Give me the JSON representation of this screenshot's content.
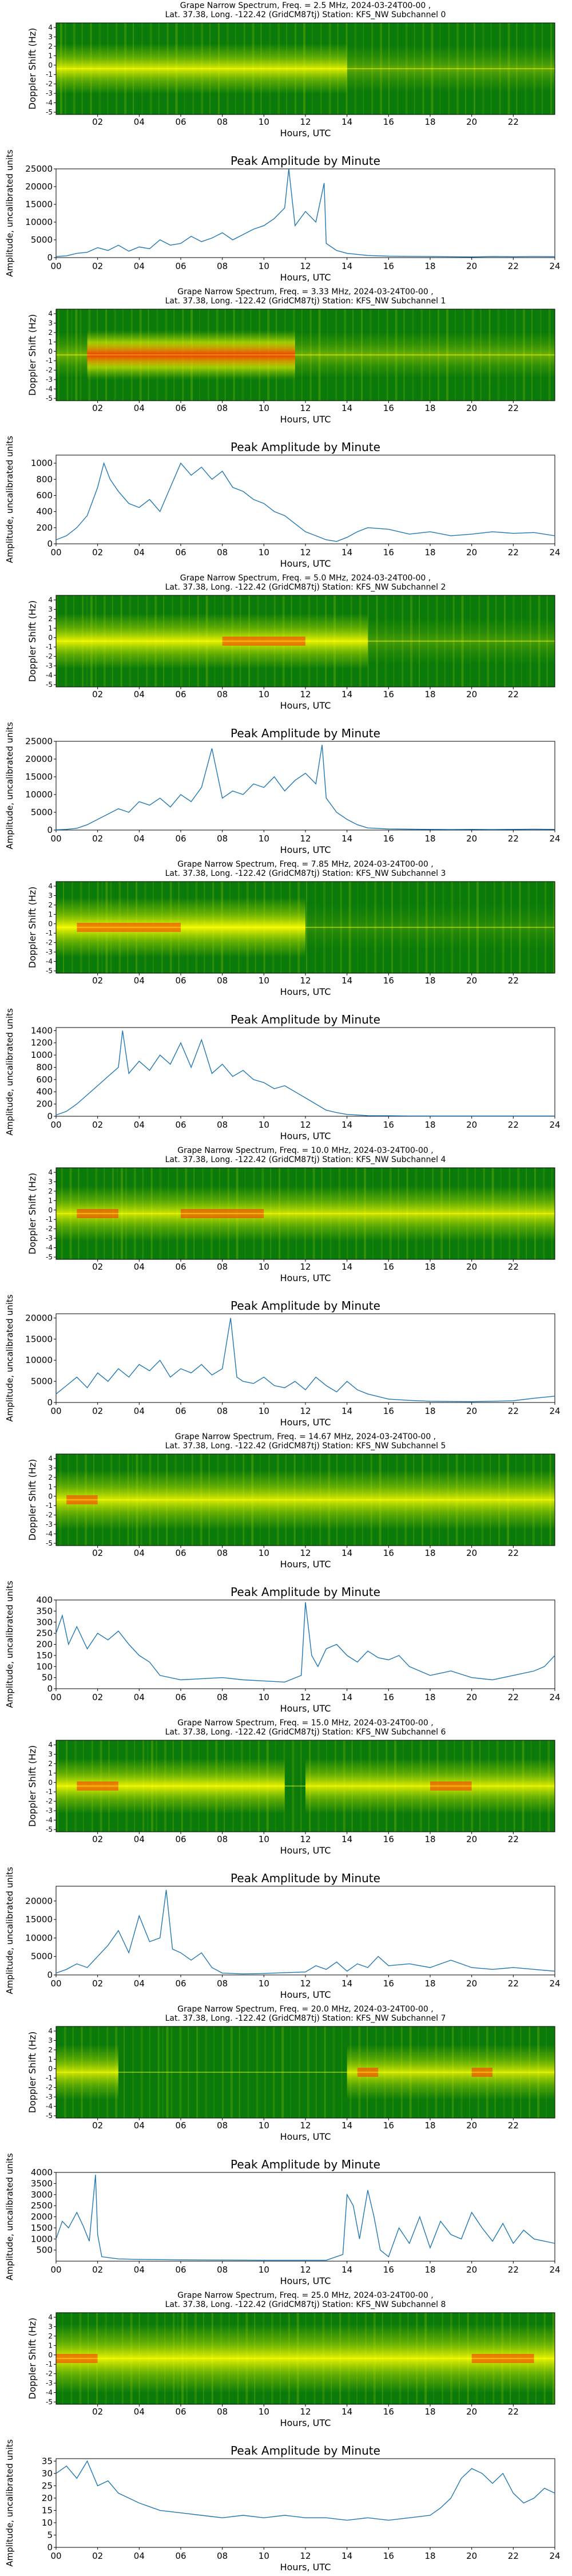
{
  "figure": {
    "type": "composite",
    "spectrogram_colors": {
      "low": "#0a7a0a",
      "mid": "#9ed200",
      "high": "#ffff00",
      "peak": "#ff2a00"
    },
    "line_color": "#1f77b4"
  },
  "chart_data": [
    {
      "type": "heatmap",
      "title": "Grape Narrow Spectrum, Freq. = 2.5 MHz, 2024-03-24T00-00 ,",
      "subtitle": "Lat.  37.38, Long. -122.42 (GridCM87tj) Station: KFS_NW Subchannel 0",
      "xlabel": "Hours, UTC",
      "ylabel": "Doppler Shift (Hz)",
      "xticks": [
        "02",
        "04",
        "06",
        "08",
        "10",
        "12",
        "14",
        "16",
        "18",
        "20",
        "22"
      ],
      "yticks": [
        "-5",
        "-4",
        "-3",
        "-2",
        "-1",
        "0",
        "1",
        "2",
        "3",
        "4"
      ]
    },
    {
      "type": "line",
      "title": "Peak Amplitude by Minute",
      "xlabel": "Hours, UTC",
      "ylabel": "Amplitude, uncalibrated units",
      "xlim": [
        0,
        24
      ],
      "ylim": [
        0,
        25000
      ],
      "yticks": [
        0,
        5000,
        10000,
        15000,
        20000,
        25000
      ],
      "x": [
        0,
        0.5,
        1,
        1.5,
        2,
        2.5,
        3,
        3.5,
        4,
        4.5,
        5,
        5.5,
        6,
        6.5,
        7,
        7.5,
        8,
        8.5,
        9,
        9.5,
        10,
        10.5,
        11,
        11.2,
        11.5,
        12,
        12.5,
        12.9,
        13,
        13.5,
        14,
        15,
        16,
        17,
        18,
        19,
        20,
        21,
        22,
        23,
        24
      ],
      "y": [
        300,
        500,
        1200,
        1500,
        2800,
        2000,
        3500,
        1800,
        3000,
        2500,
        5000,
        3500,
        4000,
        6000,
        4500,
        5500,
        7000,
        5000,
        6500,
        8000,
        9000,
        11000,
        14000,
        25000,
        9000,
        13000,
        10000,
        21000,
        4000,
        2000,
        1200,
        600,
        400,
        350,
        300,
        250,
        200,
        300,
        250,
        300,
        280
      ]
    },
    {
      "type": "heatmap",
      "title": "Grape Narrow Spectrum, Freq. = 3.33 MHz, 2024-03-24T00-00 ,",
      "subtitle": "Lat.  37.38, Long. -122.42 (GridCM87tj) Station: KFS_NW Subchannel 1",
      "xlabel": "Hours, UTC",
      "ylabel": "Doppler Shift (Hz)",
      "xticks": [
        "02",
        "04",
        "06",
        "08",
        "10",
        "12",
        "14",
        "16",
        "18",
        "20",
        "22"
      ],
      "yticks": [
        "-5",
        "-4",
        "-3",
        "-2",
        "-1",
        "0",
        "1",
        "2",
        "3",
        "4"
      ]
    },
    {
      "type": "line",
      "title": "Peak Amplitude by Minute",
      "xlabel": "Hours, UTC",
      "ylabel": "Amplitude, uncalibrated units",
      "xlim": [
        0,
        24
      ],
      "ylim": [
        0,
        1100
      ],
      "yticks": [
        0,
        200,
        400,
        600,
        800,
        1000
      ],
      "x": [
        0,
        0.5,
        1,
        1.5,
        2,
        2.3,
        2.6,
        3,
        3.5,
        4,
        4.5,
        5,
        5.5,
        6,
        6.5,
        7,
        7.5,
        8,
        8.5,
        9,
        9.5,
        10,
        10.5,
        11,
        11.5,
        12,
        12.5,
        13,
        13.5,
        14,
        14.5,
        15,
        16,
        17,
        18,
        19,
        20,
        21,
        22,
        23,
        24
      ],
      "y": [
        50,
        100,
        200,
        350,
        700,
        1000,
        800,
        650,
        500,
        450,
        550,
        400,
        700,
        1000,
        850,
        950,
        800,
        900,
        700,
        650,
        550,
        500,
        400,
        350,
        250,
        150,
        100,
        50,
        30,
        80,
        150,
        200,
        180,
        120,
        150,
        100,
        120,
        150,
        130,
        140,
        100
      ]
    },
    {
      "type": "heatmap",
      "title": "Grape Narrow Spectrum, Freq. = 5.0 MHz, 2024-03-24T00-00 ,",
      "subtitle": "Lat.  37.38, Long. -122.42 (GridCM87tj) Station: KFS_NW Subchannel 2",
      "xlabel": "Hours, UTC",
      "ylabel": "Doppler Shift (Hz)",
      "xticks": [
        "02",
        "04",
        "06",
        "08",
        "10",
        "12",
        "14",
        "16",
        "18",
        "20",
        "22"
      ],
      "yticks": [
        "-5",
        "-4",
        "-3",
        "-2",
        "-1",
        "0",
        "1",
        "2",
        "3",
        "4"
      ]
    },
    {
      "type": "line",
      "title": "Peak Amplitude by Minute",
      "xlabel": "Hours, UTC",
      "ylabel": "Amplitude, uncalibrated units",
      "xlim": [
        0,
        24
      ],
      "ylim": [
        0,
        25000
      ],
      "yticks": [
        0,
        5000,
        10000,
        15000,
        20000,
        25000
      ],
      "x": [
        0,
        0.5,
        1,
        1.5,
        2,
        2.5,
        3,
        3.5,
        4,
        4.5,
        5,
        5.5,
        6,
        6.5,
        7,
        7.5,
        8,
        8.5,
        9,
        9.5,
        10,
        10.5,
        11,
        11.5,
        12,
        12.5,
        12.8,
        13,
        13.5,
        14,
        14.5,
        15,
        16,
        17,
        18,
        19,
        20,
        21,
        22,
        23,
        24
      ],
      "y": [
        100,
        200,
        500,
        1500,
        3000,
        4500,
        6000,
        5000,
        8000,
        7000,
        9000,
        6500,
        10000,
        8000,
        12000,
        23000,
        9000,
        11000,
        10000,
        13000,
        12000,
        15000,
        11000,
        14000,
        16000,
        13000,
        24000,
        9000,
        5000,
        3000,
        1500,
        600,
        300,
        250,
        200,
        150,
        200,
        150,
        200,
        250,
        200
      ]
    },
    {
      "type": "heatmap",
      "title": "Grape Narrow Spectrum, Freq. = 7.85 MHz, 2024-03-24T00-00 ,",
      "subtitle": "Lat.  37.38, Long. -122.42 (GridCM87tj) Station: KFS_NW Subchannel 3",
      "xlabel": "Hours, UTC",
      "ylabel": "Doppler Shift (Hz)",
      "xticks": [
        "02",
        "04",
        "06",
        "08",
        "10",
        "12",
        "14",
        "16",
        "18",
        "20",
        "22"
      ],
      "yticks": [
        "-5",
        "-4",
        "-3",
        "-2",
        "-1",
        "0",
        "1",
        "2",
        "3",
        "4"
      ]
    },
    {
      "type": "line",
      "title": "Peak Amplitude by Minute",
      "xlabel": "Hours, UTC",
      "ylabel": "Amplitude, uncalibrated units",
      "xlim": [
        0,
        24
      ],
      "ylim": [
        0,
        1450
      ],
      "yticks": [
        0,
        200,
        400,
        600,
        800,
        1000,
        1200,
        1400
      ],
      "x": [
        0,
        0.5,
        1,
        1.5,
        2,
        2.5,
        3,
        3.2,
        3.5,
        4,
        4.5,
        5,
        5.5,
        6,
        6.5,
        7,
        7.5,
        8,
        8.5,
        9,
        9.5,
        10,
        10.5,
        11,
        11.5,
        12,
        12.5,
        13,
        13.5,
        14,
        15,
        16,
        17,
        18,
        19,
        20,
        21,
        22,
        23,
        24
      ],
      "y": [
        20,
        80,
        200,
        350,
        500,
        650,
        800,
        1400,
        700,
        900,
        750,
        1000,
        850,
        1200,
        800,
        1250,
        700,
        850,
        650,
        750,
        600,
        550,
        450,
        500,
        400,
        300,
        200,
        100,
        60,
        30,
        10,
        8,
        6,
        5,
        5,
        5,
        5,
        5,
        5,
        5
      ]
    },
    {
      "type": "heatmap",
      "title": "Grape Narrow Spectrum, Freq. = 10.0 MHz, 2024-03-24T00-00 ,",
      "subtitle": "Lat.  37.38, Long. -122.42 (GridCM87tj) Station: KFS_NW Subchannel 4",
      "xlabel": "Hours, UTC",
      "ylabel": "Doppler Shift (Hz)",
      "xticks": [
        "02",
        "04",
        "06",
        "08",
        "10",
        "12",
        "14",
        "16",
        "18",
        "20",
        "22"
      ],
      "yticks": [
        "-5",
        "-4",
        "-3",
        "-2",
        "-1",
        "0",
        "1",
        "2",
        "3",
        "4"
      ]
    },
    {
      "type": "line",
      "title": "Peak Amplitude by Minute",
      "xlabel": "Hours, UTC",
      "ylabel": "Amplitude, uncalibrated units",
      "xlim": [
        0,
        24
      ],
      "ylim": [
        0,
        21000
      ],
      "yticks": [
        0,
        5000,
        10000,
        15000,
        20000
      ],
      "x": [
        0,
        0.5,
        1,
        1.5,
        2,
        2.5,
        3,
        3.5,
        4,
        4.5,
        5,
        5.5,
        6,
        6.5,
        7,
        7.5,
        8,
        8.4,
        8.7,
        9,
        9.5,
        10,
        10.5,
        11,
        11.5,
        12,
        12.5,
        13,
        13.5,
        14,
        14.5,
        15,
        16,
        17,
        18,
        19,
        20,
        21,
        22,
        23,
        24
      ],
      "y": [
        2000,
        4000,
        6000,
        3500,
        7000,
        5000,
        8000,
        6000,
        9000,
        7500,
        10000,
        6000,
        8000,
        7000,
        9000,
        6500,
        8000,
        20000,
        6000,
        5000,
        4500,
        6000,
        4000,
        3500,
        5000,
        3000,
        6000,
        4000,
        2500,
        5000,
        3000,
        2000,
        800,
        500,
        300,
        250,
        200,
        300,
        400,
        1000,
        1500
      ]
    },
    {
      "type": "heatmap",
      "title": "Grape Narrow Spectrum, Freq. = 14.67 MHz, 2024-03-24T00-00 ,",
      "subtitle": "Lat.  37.38, Long. -122.42 (GridCM87tj) Station: KFS_NW Subchannel 5",
      "xlabel": "Hours, UTC",
      "ylabel": "Doppler Shift (Hz)",
      "xticks": [
        "02",
        "04",
        "06",
        "08",
        "10",
        "12",
        "14",
        "16",
        "18",
        "20",
        "22"
      ],
      "yticks": [
        "-5",
        "-4",
        "-3",
        "-2",
        "-1",
        "0",
        "1",
        "2",
        "3",
        "4"
      ]
    },
    {
      "type": "line",
      "title": "Peak Amplitude by Minute",
      "xlabel": "Hours, UTC",
      "ylabel": "Amplitude, uncalibrated units",
      "xlim": [
        0,
        24
      ],
      "ylim": [
        0,
        400
      ],
      "yticks": [
        0,
        50,
        100,
        150,
        200,
        250,
        300,
        350,
        400
      ],
      "x": [
        0,
        0.3,
        0.6,
        1,
        1.5,
        2,
        2.5,
        3,
        3.5,
        4,
        4.5,
        5,
        6,
        7,
        8,
        9,
        10,
        11,
        11.8,
        12,
        12.3,
        12.6,
        13,
        13.5,
        14,
        14.5,
        15,
        15.5,
        16,
        16.5,
        17,
        18,
        19,
        20,
        21,
        22,
        23,
        23.5,
        24
      ],
      "y": [
        250,
        330,
        200,
        280,
        180,
        250,
        220,
        260,
        200,
        150,
        120,
        60,
        40,
        45,
        50,
        40,
        35,
        30,
        60,
        390,
        150,
        100,
        180,
        200,
        150,
        120,
        170,
        140,
        130,
        150,
        100,
        60,
        80,
        50,
        40,
        60,
        80,
        100,
        150
      ]
    },
    {
      "type": "heatmap",
      "title": "Grape Narrow Spectrum, Freq. = 15.0 MHz, 2024-03-24T00-00 ,",
      "subtitle": "Lat.  37.38, Long. -122.42 (GridCM87tj) Station: KFS_NW Subchannel 6",
      "xlabel": "Hours, UTC",
      "ylabel": "Doppler Shift (Hz)",
      "xticks": [
        "02",
        "04",
        "06",
        "08",
        "10",
        "12",
        "14",
        "16",
        "18",
        "20",
        "22"
      ],
      "yticks": [
        "-5",
        "-4",
        "-3",
        "-2",
        "-1",
        "0",
        "1",
        "2",
        "3",
        "4"
      ]
    },
    {
      "type": "line",
      "title": "Peak Amplitude by Minute",
      "xlabel": "Hours, UTC",
      "ylabel": "Amplitude, uncalibrated units",
      "xlim": [
        0,
        24
      ],
      "ylim": [
        0,
        24000
      ],
      "yticks": [
        0,
        5000,
        10000,
        15000,
        20000
      ],
      "x": [
        0,
        0.5,
        1,
        1.5,
        2,
        2.5,
        3,
        3.5,
        4,
        4.5,
        5,
        5.3,
        5.6,
        6,
        6.5,
        7,
        7.5,
        8,
        9,
        10,
        11,
        12,
        12.5,
        13,
        13.5,
        14,
        14.5,
        15,
        15.5,
        16,
        17,
        18,
        19,
        20,
        21,
        22,
        23,
        24
      ],
      "y": [
        500,
        1500,
        3000,
        2000,
        5000,
        8000,
        12000,
        6000,
        16000,
        9000,
        10000,
        23000,
        7000,
        6000,
        4000,
        6000,
        2000,
        500,
        300,
        400,
        600,
        800,
        2500,
        1500,
        3500,
        1000,
        3000,
        2000,
        5000,
        2500,
        3000,
        2000,
        4000,
        2000,
        1500,
        2000,
        1500,
        1000
      ]
    },
    {
      "type": "heatmap",
      "title": "Grape Narrow Spectrum, Freq. = 20.0 MHz, 2024-03-24T00-00 ,",
      "subtitle": "Lat.  37.38, Long. -122.42 (GridCM87tj) Station: KFS_NW Subchannel 7",
      "xlabel": "Hours, UTC",
      "ylabel": "Doppler Shift (Hz)",
      "xticks": [
        "02",
        "04",
        "06",
        "08",
        "10",
        "12",
        "14",
        "16",
        "18",
        "20",
        "22"
      ],
      "yticks": [
        "-5",
        "-4",
        "-3",
        "-2",
        "-1",
        "0",
        "1",
        "2",
        "3",
        "4"
      ]
    },
    {
      "type": "line",
      "title": "Peak Amplitude by Minute",
      "xlabel": "Hours, UTC",
      "ylabel": "Amplitude, uncalibrated units",
      "xlim": [
        0,
        24
      ],
      "ylim": [
        0,
        4000
      ],
      "yticks": [
        500,
        1000,
        1500,
        2000,
        2500,
        3000,
        3500,
        4000
      ],
      "x": [
        0,
        0.3,
        0.6,
        1,
        1.3,
        1.6,
        1.9,
        2,
        2.2,
        3,
        4,
        6,
        8,
        10,
        12,
        13,
        13.8,
        14,
        14.3,
        14.6,
        15,
        15.3,
        15.6,
        16,
        16.5,
        17,
        17.5,
        18,
        18.5,
        19,
        19.5,
        20,
        20.5,
        21,
        21.5,
        22,
        22.5,
        23,
        23.5,
        24
      ],
      "y": [
        1000,
        1800,
        1500,
        2200,
        1600,
        900,
        3900,
        1200,
        200,
        100,
        80,
        60,
        50,
        40,
        40,
        40,
        300,
        3000,
        2500,
        1000,
        3200,
        2000,
        500,
        200,
        1500,
        800,
        2000,
        600,
        1800,
        1200,
        1000,
        2200,
        1500,
        900,
        1700,
        800,
        1400,
        1000,
        900,
        800
      ]
    },
    {
      "type": "heatmap",
      "title": "Grape Narrow Spectrum, Freq. = 25.0 MHz, 2024-03-24T00-00 ,",
      "subtitle": "Lat.  37.38, Long. -122.42 (GridCM87tj) Station: KFS_NW Subchannel 8",
      "xlabel": "Hours, UTC",
      "ylabel": "Doppler Shift (Hz)",
      "xticks": [
        "02",
        "04",
        "06",
        "08",
        "10",
        "12",
        "14",
        "16",
        "18",
        "20",
        "22"
      ],
      "yticks": [
        "-5",
        "-4",
        "-3",
        "-2",
        "-1",
        "0",
        "1",
        "2",
        "3",
        "4"
      ]
    },
    {
      "type": "line",
      "title": "Peak Amplitude by Minute",
      "xlabel": "Hours, UTC",
      "ylabel": "Amplitude, uncalibrated units",
      "xlim": [
        0,
        24
      ],
      "ylim": [
        0,
        36
      ],
      "yticks": [
        0,
        5,
        10,
        15,
        20,
        25,
        30,
        35
      ],
      "x": [
        0,
        0.5,
        1,
        1.5,
        2,
        2.5,
        3,
        3.5,
        4,
        5,
        6,
        7,
        8,
        9,
        10,
        11,
        12,
        13,
        14,
        15,
        16,
        17,
        18,
        18.5,
        19,
        19.5,
        20,
        20.5,
        21,
        21.5,
        22,
        22.5,
        23,
        23.5,
        24
      ],
      "y": [
        30,
        33,
        28,
        35,
        25,
        27,
        22,
        20,
        18,
        15,
        14,
        13,
        12,
        13,
        12,
        13,
        12,
        12,
        11,
        12,
        11,
        12,
        13,
        16,
        20,
        28,
        32,
        30,
        26,
        30,
        22,
        18,
        20,
        24,
        22
      ]
    }
  ],
  "axis_common": {
    "xticks_line": [
      "00",
      "02",
      "04",
      "06",
      "08",
      "10",
      "12",
      "14",
      "16",
      "18",
      "20",
      "22",
      "24"
    ]
  }
}
